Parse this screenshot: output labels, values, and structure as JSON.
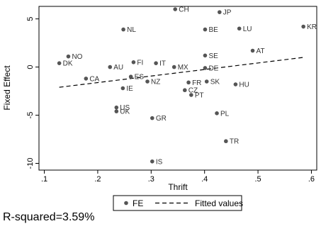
{
  "chart_data": {
    "type": "scatter",
    "xlabel": "Thrift",
    "ylabel": "Fixed Effect",
    "xlim": [
      0.09,
      0.61
    ],
    "ylim": [
      -10.7,
      6.3
    ],
    "x_ticks": [
      0.1,
      0.2,
      0.3,
      0.4,
      0.5,
      0.6
    ],
    "x_tick_labels": [
      ".1",
      ".2",
      ".3",
      ".4",
      ".5",
      ".6"
    ],
    "y_ticks": [
      -10,
      -5,
      0,
      5
    ],
    "y_tick_labels": [
      "-10",
      "-5",
      "0",
      "5"
    ],
    "grid": false,
    "legend_position": "bottom-center",
    "series": [
      {
        "name": "FE",
        "kind": "scatter",
        "color": "#555555",
        "points": [
          {
            "label": "CH",
            "x": 0.345,
            "y": 6.0
          },
          {
            "label": "JP",
            "x": 0.428,
            "y": 5.7
          },
          {
            "label": "KR",
            "x": 0.585,
            "y": 4.2
          },
          {
            "label": "NL",
            "x": 0.248,
            "y": 3.9
          },
          {
            "label": "BE",
            "x": 0.401,
            "y": 3.9
          },
          {
            "label": "LU",
            "x": 0.465,
            "y": 4.0
          },
          {
            "label": "AT",
            "x": 0.49,
            "y": 1.7
          },
          {
            "label": "SE",
            "x": 0.401,
            "y": 1.2
          },
          {
            "label": "NO",
            "x": 0.145,
            "y": 1.1
          },
          {
            "label": "DK",
            "x": 0.128,
            "y": 0.4
          },
          {
            "label": "FI",
            "x": 0.267,
            "y": 0.5
          },
          {
            "label": "IT",
            "x": 0.309,
            "y": 0.4
          },
          {
            "label": "AU",
            "x": 0.223,
            "y": 0.0
          },
          {
            "label": "MX",
            "x": 0.343,
            "y": 0.0
          },
          {
            "label": "DE",
            "x": 0.401,
            "y": -0.1
          },
          {
            "label": "ES",
            "x": 0.262,
            "y": -1.0
          },
          {
            "label": "CA",
            "x": 0.178,
            "y": -1.2
          },
          {
            "label": "NZ",
            "x": 0.293,
            "y": -1.5
          },
          {
            "label": "FR",
            "x": 0.37,
            "y": -1.6
          },
          {
            "label": "SK",
            "x": 0.404,
            "y": -1.5
          },
          {
            "label": "HU",
            "x": 0.458,
            "y": -1.8
          },
          {
            "label": "IE",
            "x": 0.247,
            "y": -2.2
          },
          {
            "label": "CZ",
            "x": 0.363,
            "y": -2.4
          },
          {
            "label": "PT",
            "x": 0.375,
            "y": -2.9
          },
          {
            "label": "US",
            "x": 0.235,
            "y": -4.2
          },
          {
            "label": "UK",
            "x": 0.235,
            "y": -4.6
          },
          {
            "label": "PL",
            "x": 0.423,
            "y": -4.8
          },
          {
            "label": "GR",
            "x": 0.302,
            "y": -5.3
          },
          {
            "label": "TR",
            "x": 0.44,
            "y": -7.7
          },
          {
            "label": "IS",
            "x": 0.302,
            "y": -9.8
          }
        ]
      },
      {
        "name": "Fitted values",
        "kind": "line",
        "style": "dashed",
        "color": "#000000",
        "x": [
          0.128,
          0.585
        ],
        "y": [
          -2.1,
          1.0
        ]
      }
    ],
    "annotation": "R-squared=3.59%"
  }
}
